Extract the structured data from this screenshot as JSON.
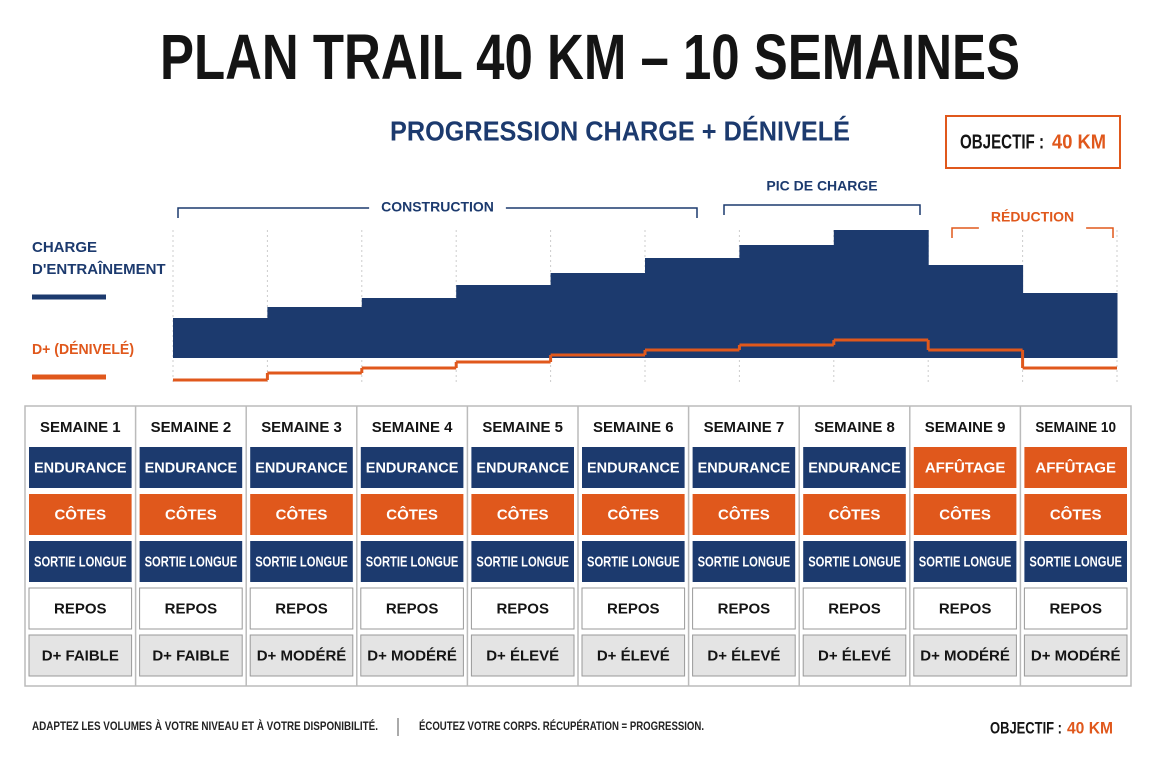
{
  "header": {
    "title": "PLAN TRAIL 40 KM – 10 SEMAINES",
    "subtitle": "PROGRESSION CHARGE + DÉNIVELÉ",
    "objective_label": "OBJECTIF :",
    "objective_value": "40 KM"
  },
  "phases": [
    {
      "label": "CONSTRUCTION",
      "color": "#1c3a6e"
    },
    {
      "label": "PIC DE CHARGE",
      "color": "#1c3a6e"
    },
    {
      "label": "RÉDUCTION",
      "color": "#e0581c"
    }
  ],
  "legend": [
    {
      "label": "CHARGE D'ENTRAÎNEMENT",
      "color": "#1c3a6e"
    },
    {
      "label": "D+ (DÉNIVELÉ)",
      "color": "#e0581c"
    }
  ],
  "profile": {
    "charge": [
      40,
      51,
      60,
      73,
      85,
      100,
      113,
      128,
      93,
      65
    ],
    "charge_lim": [
      0,
      130
    ],
    "dplus": [
      3,
      10,
      15,
      21,
      28,
      33,
      38,
      43,
      33,
      15
    ],
    "dplus_lim": [
      0,
      50
    ]
  },
  "weeks": [
    {
      "name": "SEMAINE 1",
      "cells": [
        {
          "text": "ENDURANCE",
          "color": "#1c3a6e"
        },
        {
          "text": "CÔTES",
          "color": "#e0581c"
        },
        {
          "text": "SORTIE LONGUE",
          "color": "#1c3a6e"
        },
        {
          "text": "REPOS",
          "color": "#ffffff"
        },
        {
          "text": "D+ FAIBLE",
          "color": "#e4e4e4"
        }
      ]
    },
    {
      "name": "SEMAINE 2",
      "cells": [
        {
          "text": "ENDURANCE",
          "color": "#1c3a6e"
        },
        {
          "text": "CÔTES",
          "color": "#e0581c"
        },
        {
          "text": "SORTIE LONGUE",
          "color": "#1c3a6e"
        },
        {
          "text": "REPOS",
          "color": "#ffffff"
        },
        {
          "text": "D+ FAIBLE",
          "color": "#e4e4e4"
        }
      ]
    },
    {
      "name": "SEMAINE 3",
      "cells": [
        {
          "text": "ENDURANCE",
          "color": "#1c3a6e"
        },
        {
          "text": "CÔTES",
          "color": "#e0581c"
        },
        {
          "text": "SORTIE LONGUE",
          "color": "#1c3a6e"
        },
        {
          "text": "REPOS",
          "color": "#ffffff"
        },
        {
          "text": "D+ MODÉRÉ",
          "color": "#e4e4e4"
        }
      ]
    },
    {
      "name": "SEMAINE 4",
      "cells": [
        {
          "text": "ENDURANCE",
          "color": "#1c3a6e"
        },
        {
          "text": "CÔTES",
          "color": "#e0581c"
        },
        {
          "text": "SORTIE LONGUE",
          "color": "#1c3a6e"
        },
        {
          "text": "REPOS",
          "color": "#ffffff"
        },
        {
          "text": "D+ MODÉRÉ",
          "color": "#e4e4e4"
        }
      ]
    },
    {
      "name": "SEMAINE 5",
      "cells": [
        {
          "text": "ENDURANCE",
          "color": "#1c3a6e"
        },
        {
          "text": "CÔTES",
          "color": "#e0581c"
        },
        {
          "text": "SORTIE LONGUE",
          "color": "#1c3a6e"
        },
        {
          "text": "REPOS",
          "color": "#ffffff"
        },
        {
          "text": "D+ ÉLEVÉ",
          "color": "#e4e4e4"
        }
      ]
    },
    {
      "name": "SEMAINE 6",
      "cells": [
        {
          "text": "ENDURANCE",
          "color": "#1c3a6e"
        },
        {
          "text": "CÔTES",
          "color": "#e0581c"
        },
        {
          "text": "SORTIE LONGUE",
          "color": "#1c3a6e"
        },
        {
          "text": "REPOS",
          "color": "#ffffff"
        },
        {
          "text": "D+ ÉLEVÉ",
          "color": "#e4e4e4"
        }
      ]
    },
    {
      "name": "SEMAINE 7",
      "cells": [
        {
          "text": "ENDURANCE",
          "color": "#1c3a6e"
        },
        {
          "text": "CÔTES",
          "color": "#e0581c"
        },
        {
          "text": "SORTIE LONGUE",
          "color": "#1c3a6e"
        },
        {
          "text": "REPOS",
          "color": "#ffffff"
        },
        {
          "text": "D+ ÉLEVÉ",
          "color": "#e4e4e4"
        }
      ]
    },
    {
      "name": "SEMAINE 8",
      "cells": [
        {
          "text": "ENDURANCE",
          "color": "#1c3a6e"
        },
        {
          "text": "CÔTES",
          "color": "#e0581c"
        },
        {
          "text": "SORTIE LONGUE",
          "color": "#1c3a6e"
        },
        {
          "text": "REPOS",
          "color": "#ffffff"
        },
        {
          "text": "D+ ÉLEVÉ",
          "color": "#e4e4e4"
        }
      ]
    },
    {
      "name": "SEMAINE 9",
      "cells": [
        {
          "text": "AFFÛTAGE",
          "color": "#e0581c"
        },
        {
          "text": "CÔTES",
          "color": "#e0581c"
        },
        {
          "text": "SORTIE LONGUE",
          "color": "#1c3a6e"
        },
        {
          "text": "REPOS",
          "color": "#ffffff"
        },
        {
          "text": "D+ MODÉRÉ",
          "color": "#e4e4e4"
        }
      ]
    },
    {
      "name": "SEMAINE 10",
      "cells": [
        {
          "text": "AFFÛTAGE",
          "color": "#e0581c"
        },
        {
          "text": "CÔTES",
          "color": "#e0581c"
        },
        {
          "text": "SORTIE LONGUE",
          "color": "#1c3a6e"
        },
        {
          "text": "REPOS",
          "color": "#ffffff"
        },
        {
          "text": "D+ MODÉRÉ",
          "color": "#e4e4e4"
        }
      ]
    }
  ],
  "footer": {
    "note_1": "ADAPTEZ LES VOLUMES À VOTRE NIVEAU ET À VOTRE DISPONIBILITÉ.",
    "note_2": "ÉCOUTEZ VOTRE CORPS. RÉCUPÉRATION = PROGRESSION.",
    "objective_label": "OBJECTIF :",
    "objective_value": "40 KM"
  }
}
